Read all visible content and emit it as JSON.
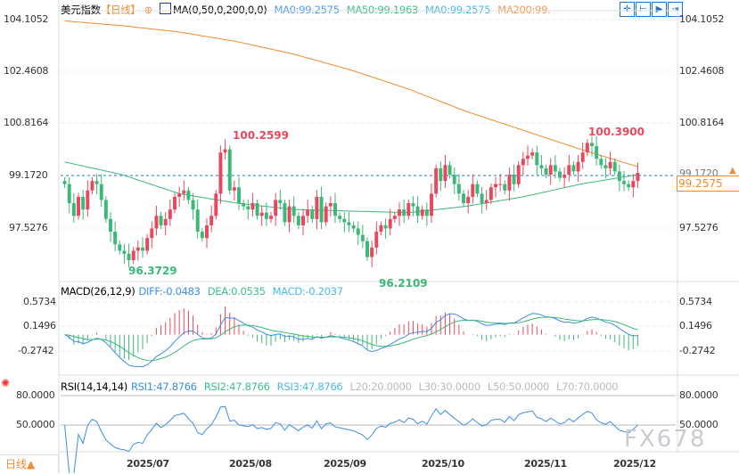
{
  "header": {
    "title": "美元指数",
    "period": "【日线】",
    "indicator": "MA(0,50,0,200,0,0)",
    "ma0": "MA0:99.2575",
    "ma50": "MA50:99.1963",
    "ma0b": "MA0:99.2575",
    "ma200": "MA200:99.",
    "tools": [
      "crosshair-icon",
      "fit-left-icon",
      "fit-play-icon",
      "fit-right-icon"
    ]
  },
  "price_axis": {
    "labels": [
      "104.1052",
      "102.4608",
      "100.8164",
      "99.1720",
      "97.5276"
    ],
    "current": "99.2575",
    "hidden": "99.1720"
  },
  "annotations": {
    "high1": "100.2599",
    "high2": "100.3900",
    "low1": "96.3729",
    "low2": "96.2109"
  },
  "macd": {
    "title": "MACD(26,12,9)",
    "diff": "DIFF:-0.0483",
    "dea": "DEA:0.0535",
    "macd": "MACD:-0.2037",
    "labels": [
      "0.5734",
      "0.1496",
      "-0.2742"
    ]
  },
  "rsi": {
    "title": "RSI(14,14,14)",
    "rsi1": "RSI1:47.8766",
    "rsi2": "RSI2:47.8766",
    "rsi3": "RSI3:47.8766",
    "l20": "L20:20.0000",
    "l30": "L30:30.0000",
    "l50": "L50:50.0000",
    "l70": "L70:70.0000",
    "labels": [
      "80.0000",
      "50.0000"
    ]
  },
  "footer": {
    "period_button": "日线▲",
    "dates": [
      "2025/07",
      "2025/08",
      "2025/09",
      "2025/10",
      "2025/11",
      "2025/12"
    ]
  },
  "watermark": "FX678",
  "colors": {
    "up": "#e8485e",
    "down": "#3cb878",
    "ma50": "#3cb878",
    "ma200": "#f08a30",
    "diff": "#3d8ce8",
    "dea": "#3cb878",
    "accent": "#f08a30"
  },
  "chart_data": {
    "type": "candlestick",
    "closes": [
      98.9,
      98.3,
      97.9,
      98.5,
      98.1,
      98.7,
      99.0,
      98.9,
      98.4,
      97.8,
      97.4,
      97.0,
      96.8,
      96.7,
      96.5,
      96.8,
      96.9,
      96.8,
      97.2,
      97.5,
      97.9,
      97.6,
      97.8,
      98.1,
      98.5,
      98.6,
      98.7,
      98.4,
      98.1,
      97.4,
      97.2,
      97.6,
      97.9,
      98.6,
      99.9,
      100.0,
      98.7,
      98.8,
      98.3,
      98.2,
      98.1,
      98.3,
      97.9,
      98.0,
      97.8,
      97.9,
      98.4,
      98.3,
      97.7,
      98.2,
      97.9,
      97.6,
      97.9,
      98.1,
      97.8,
      98.5,
      97.7,
      98.2,
      98.3,
      97.9,
      97.8,
      97.7,
      97.6,
      97.5,
      97.3,
      97.1,
      96.6,
      96.9,
      97.4,
      97.6,
      97.5,
      97.8,
      97.9,
      98.1,
      97.9,
      98.3,
      98.2,
      97.9,
      98.1,
      97.9,
      98.6,
      99.4,
      99.0,
      99.5,
      99.2,
      98.9,
      98.6,
      98.3,
      98.5,
      98.9,
      98.6,
      98.3,
      98.4,
      98.8,
      98.9,
      98.9,
      98.7,
      99.2,
      98.9,
      99.5,
      99.7,
      99.8,
      99.9,
      99.5,
      99.4,
      99.2,
      99.5,
      99.3,
      99.1,
      99.2,
      99.5,
      99.3,
      99.6,
      99.9,
      100.2,
      100.1,
      99.7,
      99.5,
      99.4,
      99.6,
      99.3,
      99.0,
      98.9,
      98.8,
      99.0,
      99.2575
    ],
    "ma200": [
      104.05,
      103.9,
      103.7,
      103.4,
      103.0,
      102.5,
      101.9,
      101.2,
      100.6,
      100.0,
      99.45
    ],
    "ma50": [
      99.6,
      99.2,
      98.6,
      98.3,
      98.1,
      98.05,
      98.0,
      98.2,
      98.5,
      98.9,
      99.2
    ],
    "ylim": [
      95.8,
      104.4
    ]
  }
}
